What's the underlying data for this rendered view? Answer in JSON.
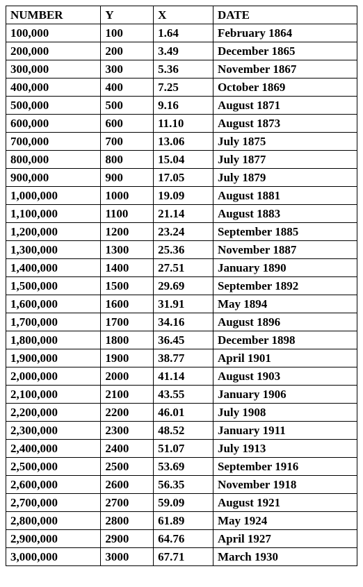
{
  "table": {
    "columns": [
      "NUMBER",
      "Y",
      "X",
      "DATE"
    ],
    "column_widths": [
      "27%",
      "15%",
      "17%",
      "41%"
    ],
    "header_fontsize": 17,
    "cell_fontsize": 17,
    "font_family": "Times New Roman",
    "border_color": "#000000",
    "background_color": "#ffffff",
    "text_color": "#000000",
    "header_fontweight": "bold",
    "cell_fontweight": "bold",
    "rows": [
      [
        "100,000",
        "100",
        "1.64",
        "February 1864"
      ],
      [
        "200,000",
        "200",
        "3.49",
        "December 1865"
      ],
      [
        "300,000",
        "300",
        "5.36",
        "November 1867"
      ],
      [
        "400,000",
        "400",
        "7.25",
        "October 1869"
      ],
      [
        "500,000",
        "500",
        "9.16",
        "August 1871"
      ],
      [
        "600,000",
        "600",
        "11.10",
        "August 1873"
      ],
      [
        "700,000",
        "700",
        "13.06",
        "July 1875"
      ],
      [
        "800,000",
        "800",
        "15.04",
        "July 1877"
      ],
      [
        "900,000",
        "900",
        "17.05",
        "July 1879"
      ],
      [
        "1,000,000",
        "1000",
        "19.09",
        "August 1881"
      ],
      [
        "1,100,000",
        "1100",
        "21.14",
        "August 1883"
      ],
      [
        "1,200,000",
        "1200",
        "23.24",
        "September 1885"
      ],
      [
        "1,300,000",
        "1300",
        "25.36",
        "November 1887"
      ],
      [
        "1,400,000",
        "1400",
        "27.51",
        "January 1890"
      ],
      [
        "1,500,000",
        "1500",
        "29.69",
        "September 1892"
      ],
      [
        "1,600,000",
        "1600",
        "31.91",
        "May 1894"
      ],
      [
        "1,700,000",
        "1700",
        "34.16",
        "August 1896"
      ],
      [
        "1,800,000",
        "1800",
        "36.45",
        "December 1898"
      ],
      [
        "1,900,000",
        "1900",
        "38.77",
        "April 1901"
      ],
      [
        "2,000,000",
        "2000",
        "41.14",
        "August 1903"
      ],
      [
        "2,100,000",
        "2100",
        "43.55",
        "January 1906"
      ],
      [
        "2,200,000",
        "2200",
        "46.01",
        "July 1908"
      ],
      [
        "2,300,000",
        "2300",
        "48.52",
        "January 1911"
      ],
      [
        "2,400,000",
        "2400",
        "51.07",
        "July 1913"
      ],
      [
        "2,500,000",
        "2500",
        "53.69",
        "September 1916"
      ],
      [
        "2,600,000",
        "2600",
        "56.35",
        "November 1918"
      ],
      [
        "2,700,000",
        "2700",
        "59.09",
        "August 1921"
      ],
      [
        "2,800,000",
        "2800",
        "61.89",
        "May 1924"
      ],
      [
        "2,900,000",
        "2900",
        "64.76",
        "April 1927"
      ],
      [
        "3,000,000",
        "3000",
        "67.71",
        "March 1930"
      ]
    ]
  }
}
